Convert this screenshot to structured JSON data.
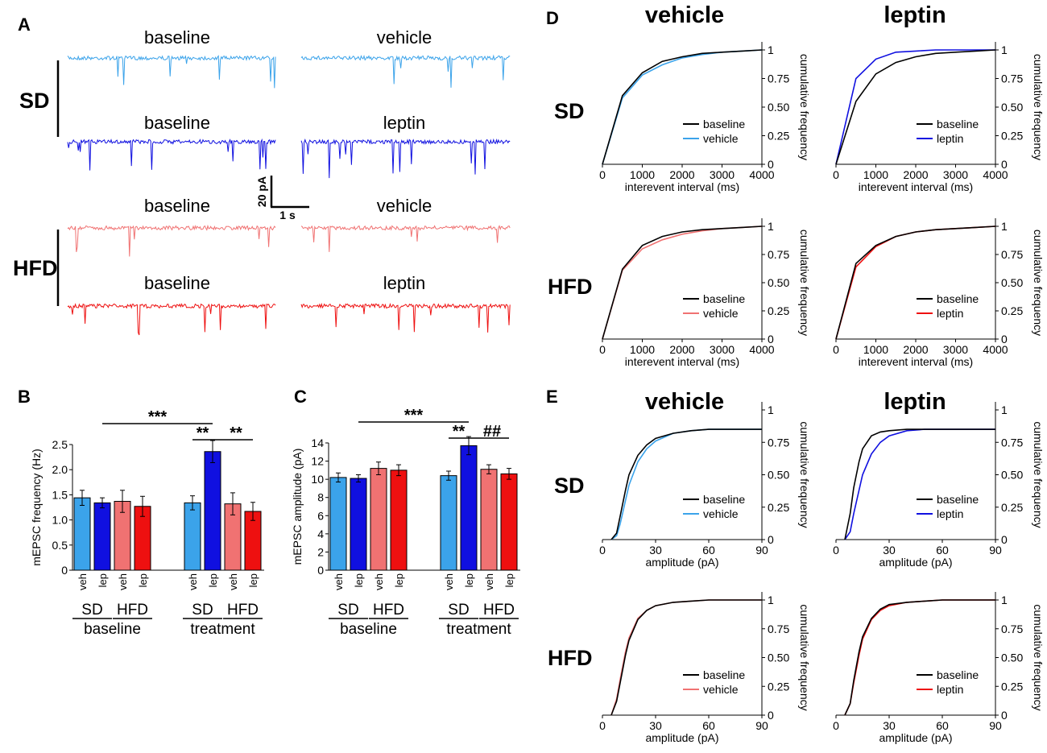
{
  "colors": {
    "sd_vehicle": "#3ba3ea",
    "sd_leptin": "#1010e0",
    "hfd_vehicle": "#f07272",
    "hfd_leptin": "#ee1010",
    "baseline": "#000000"
  },
  "panelA": {
    "letter": "A",
    "group_labels": [
      "SD",
      "HFD"
    ],
    "rows": [
      {
        "left": "baseline",
        "right": "vehicle",
        "color": "#3ba3ea",
        "group": "SD"
      },
      {
        "left": "baseline",
        "right": "leptin",
        "color": "#1010e0",
        "group": "SD"
      },
      {
        "left": "baseline",
        "right": "vehicle",
        "color": "#f07272",
        "group": "HFD"
      },
      {
        "left": "baseline",
        "right": "leptin",
        "color": "#ee1010",
        "group": "HFD"
      }
    ],
    "scale_y": "20 pA",
    "scale_x": "1 s"
  },
  "chart_data": [
    {
      "id": "B",
      "letter": "B",
      "type": "bar",
      "ylabel": "mEPSC frequency (Hz)",
      "ylim": [
        0,
        2.5
      ],
      "yticks": [
        "0",
        "0.5",
        "1.0",
        "1.5",
        "2.0",
        "2.5"
      ],
      "ytick_values": [
        0,
        0.5,
        1.0,
        1.5,
        2.0,
        2.5
      ],
      "bar_labels": [
        "veh",
        "lep",
        "veh",
        "lep",
        "veh",
        "lep",
        "veh",
        "lep"
      ],
      "values": [
        1.44,
        1.34,
        1.37,
        1.27,
        1.34,
        2.36,
        1.32,
        1.17
      ],
      "errors": [
        0.15,
        0.1,
        0.22,
        0.2,
        0.14,
        0.22,
        0.22,
        0.18
      ],
      "colors": [
        "#3ba3ea",
        "#1010e0",
        "#f07272",
        "#ee1010",
        "#3ba3ea",
        "#1010e0",
        "#f07272",
        "#ee1010"
      ],
      "diet_labels": [
        "SD",
        "HFD",
        "SD",
        "HFD"
      ],
      "phase_labels": [
        "baseline",
        "treatment"
      ],
      "significance": [
        "***",
        "**",
        "**"
      ]
    },
    {
      "id": "C",
      "letter": "C",
      "type": "bar",
      "ylabel": "mEPSC amplitude (pA)",
      "ylim": [
        0,
        14
      ],
      "yticks": [
        "0",
        "2",
        "4",
        "6",
        "8",
        "10",
        "12",
        "14"
      ],
      "ytick_values": [
        0,
        2,
        4,
        6,
        8,
        10,
        12,
        14
      ],
      "bar_labels": [
        "veh",
        "lep",
        "veh",
        "lep",
        "veh",
        "lep",
        "veh",
        "lep"
      ],
      "values": [
        10.2,
        10.1,
        11.2,
        11.0,
        10.4,
        13.7,
        11.1,
        10.6
      ],
      "errors": [
        0.5,
        0.4,
        0.7,
        0.6,
        0.5,
        1.0,
        0.5,
        0.6
      ],
      "colors": [
        "#3ba3ea",
        "#1010e0",
        "#f07272",
        "#ee1010",
        "#3ba3ea",
        "#1010e0",
        "#f07272",
        "#ee1010"
      ],
      "diet_labels": [
        "SD",
        "HFD",
        "SD",
        "HFD"
      ],
      "phase_labels": [
        "baseline",
        "treatment"
      ],
      "significance": [
        "***",
        "**",
        "##"
      ]
    },
    {
      "id": "D-SD-vehicle",
      "type": "line",
      "xlabel": "interevent interval (ms)",
      "ylabel": "cumulative frequency",
      "xlim": [
        0,
        4000
      ],
      "ylim": [
        0,
        1
      ],
      "xticks": [
        "0",
        "1000",
        "2000",
        "3000",
        "4000"
      ],
      "xtick_values": [
        0,
        1000,
        2000,
        3000,
        4000
      ],
      "yticks": [
        "0",
        "0.25",
        "0.50",
        "0.75",
        "1"
      ],
      "ytick_values": [
        0,
        0.25,
        0.5,
        0.75,
        1
      ],
      "series": [
        {
          "name": "baseline",
          "color": "#000000",
          "x": [
            0,
            500,
            1000,
            1500,
            2000,
            2500,
            3000,
            3500,
            4000
          ],
          "y": [
            0,
            0.6,
            0.8,
            0.9,
            0.94,
            0.97,
            0.98,
            0.99,
            1.0
          ]
        },
        {
          "name": "vehicle",
          "color": "#3ba3ea",
          "x": [
            0,
            500,
            1000,
            1500,
            2000,
            2500,
            3000,
            3500,
            4000
          ],
          "y": [
            0,
            0.58,
            0.78,
            0.87,
            0.93,
            0.96,
            0.98,
            0.99,
            1.0
          ]
        }
      ]
    },
    {
      "id": "D-SD-leptin",
      "type": "line",
      "xlabel": "interevent interval (ms)",
      "ylabel": "cumulative frequency",
      "xlim": [
        0,
        4000
      ],
      "ylim": [
        0,
        1
      ],
      "xticks": [
        "0",
        "1000",
        "2000",
        "3000",
        "4000"
      ],
      "xtick_values": [
        0,
        1000,
        2000,
        3000,
        4000
      ],
      "yticks": [
        "0",
        "0.25",
        "0.50",
        "0.75",
        "1"
      ],
      "ytick_values": [
        0,
        0.25,
        0.5,
        0.75,
        1
      ],
      "series": [
        {
          "name": "baseline",
          "color": "#000000",
          "x": [
            0,
            500,
            1000,
            1500,
            2000,
            2500,
            3000,
            3500,
            4000
          ],
          "y": [
            0,
            0.55,
            0.79,
            0.89,
            0.94,
            0.97,
            0.98,
            0.99,
            1.0
          ]
        },
        {
          "name": "leptin",
          "color": "#1010e0",
          "x": [
            0,
            500,
            1000,
            1500,
            2000,
            2500,
            3000,
            3500,
            4000
          ],
          "y": [
            0,
            0.75,
            0.92,
            0.98,
            0.99,
            1.0,
            1.0,
            1.0,
            1.0
          ]
        }
      ]
    },
    {
      "id": "D-HFD-vehicle",
      "type": "line",
      "xlabel": "interevent interval (ms)",
      "ylabel": "cumulative frequency",
      "xlim": [
        0,
        4000
      ],
      "ylim": [
        0,
        1
      ],
      "xticks": [
        "0",
        "1000",
        "2000",
        "3000",
        "4000"
      ],
      "xtick_values": [
        0,
        1000,
        2000,
        3000,
        4000
      ],
      "yticks": [
        "0",
        "0.25",
        "0.50",
        "0.75",
        "1"
      ],
      "ytick_values": [
        0,
        0.25,
        0.5,
        0.75,
        1
      ],
      "series": [
        {
          "name": "baseline",
          "color": "#000000",
          "x": [
            0,
            500,
            1000,
            1500,
            2000,
            2500,
            3000,
            3500,
            4000
          ],
          "y": [
            0,
            0.62,
            0.83,
            0.91,
            0.95,
            0.97,
            0.98,
            0.99,
            1.0
          ]
        },
        {
          "name": "vehicle",
          "color": "#f07272",
          "x": [
            0,
            500,
            1000,
            1500,
            2000,
            2500,
            3000,
            3500,
            4000
          ],
          "y": [
            0,
            0.61,
            0.8,
            0.88,
            0.93,
            0.96,
            0.98,
            0.99,
            1.0
          ]
        }
      ]
    },
    {
      "id": "D-HFD-leptin",
      "type": "line",
      "xlabel": "interevent interval (ms)",
      "ylabel": "cumulative frequency",
      "xlim": [
        0,
        4000
      ],
      "ylim": [
        0,
        1
      ],
      "xticks": [
        "0",
        "1000",
        "2000",
        "3000",
        "4000"
      ],
      "xtick_values": [
        0,
        1000,
        2000,
        3000,
        4000
      ],
      "yticks": [
        "0",
        "0.25",
        "0.50",
        "0.75",
        "1"
      ],
      "ytick_values": [
        0,
        0.25,
        0.5,
        0.75,
        1
      ],
      "series": [
        {
          "name": "baseline",
          "color": "#000000",
          "x": [
            0,
            500,
            1000,
            1500,
            2000,
            2500,
            3000,
            3500,
            4000
          ],
          "y": [
            0,
            0.67,
            0.83,
            0.91,
            0.95,
            0.97,
            0.98,
            0.99,
            1.0
          ]
        },
        {
          "name": "leptin",
          "color": "#ee1010",
          "x": [
            0,
            500,
            1000,
            1500,
            2000,
            2500,
            3000,
            3500,
            4000
          ],
          "y": [
            0,
            0.64,
            0.82,
            0.91,
            0.95,
            0.97,
            0.98,
            0.99,
            1.0
          ]
        }
      ]
    },
    {
      "id": "E-SD-vehicle",
      "type": "line",
      "xlabel": "amplitude (pA)",
      "ylabel": "cumulative frequency",
      "xlim": [
        0,
        90
      ],
      "ylim": [
        0,
        1
      ],
      "xticks": [
        "0",
        "30",
        "60",
        "90"
      ],
      "xtick_values": [
        0,
        30,
        60,
        90
      ],
      "yticks": [
        "0",
        "0.25",
        "0.50",
        "0.75",
        "1"
      ],
      "ytick_values": [
        0,
        0.25,
        0.5,
        0.75,
        1
      ],
      "series": [
        {
          "name": "baseline",
          "color": "#000000",
          "x": [
            5,
            8,
            10,
            13,
            15,
            20,
            25,
            30,
            40,
            50,
            60,
            70,
            80,
            90
          ],
          "y": [
            0,
            0.05,
            0.18,
            0.38,
            0.5,
            0.65,
            0.73,
            0.78,
            0.82,
            0.84,
            0.85,
            0.85,
            0.85,
            0.85
          ]
        },
        {
          "name": "vehicle",
          "color": "#3ba3ea",
          "x": [
            5,
            8,
            10,
            13,
            15,
            20,
            25,
            30,
            40,
            50,
            60,
            70,
            80,
            90
          ],
          "y": [
            0,
            0.03,
            0.12,
            0.3,
            0.42,
            0.6,
            0.7,
            0.76,
            0.82,
            0.84,
            0.85,
            0.85,
            0.85,
            0.85
          ]
        }
      ]
    },
    {
      "id": "E-SD-leptin",
      "type": "line",
      "xlabel": "amplitude (pA)",
      "ylabel": "cumulative frequency",
      "xlim": [
        0,
        90
      ],
      "ylim": [
        0,
        1
      ],
      "xticks": [
        "0",
        "30",
        "60",
        "90"
      ],
      "xtick_values": [
        0,
        30,
        60,
        90
      ],
      "yticks": [
        "0",
        "0.25",
        "0.50",
        "0.75",
        "1"
      ],
      "ytick_values": [
        0,
        0.25,
        0.5,
        0.75,
        1
      ],
      "series": [
        {
          "name": "baseline",
          "color": "#000000",
          "x": [
            5,
            8,
            10,
            13,
            15,
            20,
            25,
            30,
            40,
            50,
            60,
            70,
            80,
            90
          ],
          "y": [
            0,
            0.2,
            0.4,
            0.6,
            0.7,
            0.8,
            0.83,
            0.84,
            0.85,
            0.85,
            0.85,
            0.85,
            0.85,
            0.85
          ]
        },
        {
          "name": "leptin",
          "color": "#1010e0",
          "x": [
            5,
            8,
            10,
            13,
            15,
            20,
            25,
            30,
            40,
            50,
            60,
            70,
            80,
            90
          ],
          "y": [
            0,
            0.06,
            0.2,
            0.38,
            0.5,
            0.66,
            0.75,
            0.8,
            0.84,
            0.85,
            0.85,
            0.85,
            0.85,
            0.85
          ]
        }
      ]
    },
    {
      "id": "E-HFD-vehicle",
      "type": "line",
      "xlabel": "amplitude (pA)",
      "ylabel": "cumulative frequency",
      "xlim": [
        0,
        90
      ],
      "ylim": [
        0,
        1
      ],
      "xticks": [
        "0",
        "30",
        "60",
        "90"
      ],
      "xtick_values": [
        0,
        30,
        60,
        90
      ],
      "yticks": [
        "0",
        "0.25",
        "0.50",
        "0.75",
        "1"
      ],
      "ytick_values": [
        0,
        0.25,
        0.5,
        0.75,
        1
      ],
      "series": [
        {
          "name": "baseline",
          "color": "#000000",
          "x": [
            5,
            8,
            10,
            13,
            15,
            20,
            25,
            30,
            40,
            50,
            60,
            70,
            80,
            90
          ],
          "y": [
            0,
            0.12,
            0.28,
            0.52,
            0.65,
            0.83,
            0.91,
            0.95,
            0.98,
            0.99,
            1.0,
            1.0,
            1.0,
            1.0
          ]
        },
        {
          "name": "vehicle",
          "color": "#f07272",
          "x": [
            5,
            8,
            10,
            13,
            15,
            20,
            25,
            30,
            40,
            50,
            60,
            70,
            80,
            90
          ],
          "y": [
            0,
            0.14,
            0.31,
            0.55,
            0.67,
            0.84,
            0.91,
            0.95,
            0.98,
            0.99,
            1.0,
            1.0,
            1.0,
            1.0
          ]
        }
      ]
    },
    {
      "id": "E-HFD-leptin",
      "type": "line",
      "xlabel": "amplitude (pA)",
      "ylabel": "cumulative frequency",
      "xlim": [
        0,
        90
      ],
      "ylim": [
        0,
        1
      ],
      "xticks": [
        "0",
        "30",
        "60",
        "90"
      ],
      "xtick_values": [
        0,
        30,
        60,
        90
      ],
      "yticks": [
        "0",
        "0.25",
        "0.50",
        "0.75",
        "1"
      ],
      "ytick_values": [
        0,
        0.25,
        0.5,
        0.75,
        1
      ],
      "series": [
        {
          "name": "baseline",
          "color": "#000000",
          "x": [
            5,
            8,
            10,
            13,
            15,
            20,
            25,
            30,
            40,
            50,
            60,
            70,
            80,
            90
          ],
          "y": [
            0,
            0.1,
            0.3,
            0.55,
            0.68,
            0.84,
            0.92,
            0.96,
            0.98,
            0.99,
            1.0,
            1.0,
            1.0,
            1.0
          ]
        },
        {
          "name": "leptin",
          "color": "#ee1010",
          "x": [
            5,
            8,
            10,
            13,
            15,
            20,
            25,
            30,
            40,
            50,
            60,
            70,
            80,
            90
          ],
          "y": [
            0,
            0.1,
            0.28,
            0.52,
            0.66,
            0.83,
            0.91,
            0.95,
            0.98,
            0.99,
            1.0,
            1.0,
            1.0,
            1.0
          ]
        }
      ]
    }
  ],
  "panelD": {
    "letter": "D",
    "col_titles": [
      "vehicle",
      "leptin"
    ],
    "row_labels": [
      "SD",
      "HFD"
    ]
  },
  "panelE": {
    "letter": "E",
    "col_titles": [
      "vehicle",
      "leptin"
    ],
    "row_labels": [
      "SD",
      "HFD"
    ]
  }
}
